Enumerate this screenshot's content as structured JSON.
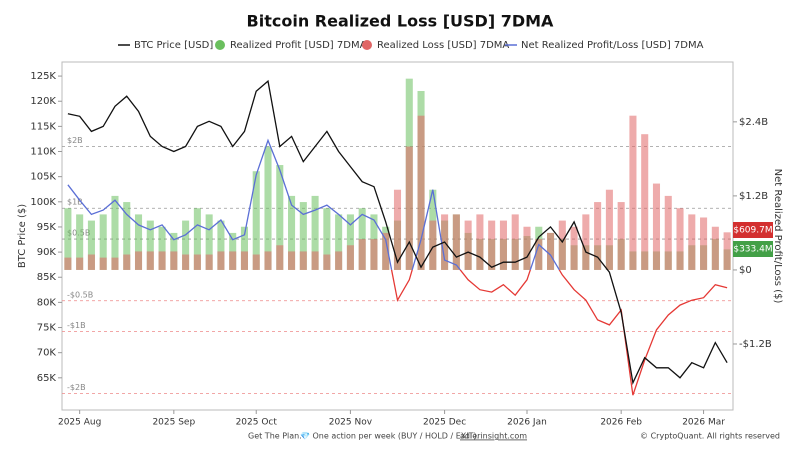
{
  "chart_data": {
    "type": "combo",
    "title": "Bitcoin Realized Loss [USD] 7DMA",
    "ylabel": "BTC Price ($)",
    "y2label": "Net Realized Profit/Loss ($)",
    "categories": [
      null,
      "2025 Aug",
      null,
      null,
      null,
      null,
      null,
      null,
      null,
      "2025 Sep",
      null,
      null,
      null,
      null,
      null,
      null,
      "2025 Oct",
      null,
      null,
      null,
      null,
      null,
      null,
      null,
      "2025 Nov",
      null,
      null,
      null,
      null,
      null,
      null,
      null,
      "2025 Dec",
      null,
      null,
      null,
      null,
      null,
      null,
      "2026 Jan",
      null,
      null,
      null,
      null,
      null,
      null,
      null,
      "2026 Feb",
      null,
      null,
      null,
      null,
      null,
      null,
      "2026 Mar",
      null,
      null
    ],
    "ylim": [
      58.6,
      127.8
    ],
    "yticks": [
      {
        "value": 65,
        "label": "65K"
      },
      {
        "value": 70,
        "label": "70K"
      },
      {
        "value": 75,
        "label": "75K"
      },
      {
        "value": 80,
        "label": "80K"
      },
      {
        "value": 85,
        "label": "85K"
      },
      {
        "value": 90,
        "label": "90K"
      },
      {
        "value": 95,
        "label": "95K"
      },
      {
        "value": 100,
        "label": "100K"
      },
      {
        "value": 105,
        "label": "105K"
      },
      {
        "value": 110,
        "label": "110K"
      },
      {
        "value": 115,
        "label": "115K"
      },
      {
        "value": 120,
        "label": "120K"
      },
      {
        "value": 125,
        "label": "125K"
      }
    ],
    "y2lim": [
      -2.27,
      3.37
    ],
    "y2ticks": [
      {
        "value": -1.2,
        "label": "-$1.2B"
      },
      {
        "value": 0,
        "label": "$0"
      },
      {
        "value": 1.2,
        "label": "$1.2B"
      },
      {
        "value": 2.4,
        "label": "$2.4B"
      }
    ],
    "reference_lines": [
      {
        "value": 2,
        "label": "$2B"
      },
      {
        "value": 1,
        "label": "$1B"
      },
      {
        "value": 0.5,
        "label": "$0.5B"
      },
      {
        "value": -0.5,
        "label": "-$0.5B"
      },
      {
        "value": -1,
        "label": "-$1B"
      },
      {
        "value": -2,
        "label": "-$2B"
      }
    ],
    "series": [
      {
        "name": "BTC Price [USD]",
        "type": "line",
        "color": "#111111",
        "values": [
          117.5,
          117,
          114,
          115,
          119,
          121,
          118,
          113,
          111,
          110,
          111,
          115,
          116,
          115,
          111,
          114,
          122,
          124,
          111,
          113,
          108,
          111,
          114,
          110,
          107,
          104,
          103,
          96,
          88,
          92,
          87,
          91,
          92,
          89,
          90,
          89,
          87,
          88,
          88,
          89,
          93,
          95,
          92,
          96,
          90,
          89,
          86,
          78,
          64,
          69,
          67,
          67,
          65,
          68,
          67,
          72,
          68
        ]
      },
      {
        "name": "Realized Profit [USD] 7DMA",
        "type": "bar",
        "axis": "y2",
        "color": "#6abf5e",
        "values": [
          1.0,
          0.9,
          0.8,
          0.9,
          1.2,
          1.1,
          0.9,
          0.8,
          0.7,
          0.6,
          0.8,
          1.0,
          0.9,
          0.8,
          0.6,
          0.7,
          1.6,
          2.0,
          1.7,
          1.2,
          1.1,
          1.2,
          1.0,
          0.9,
          0.9,
          1.0,
          0.9,
          0.7,
          0.8,
          3.1,
          2.9,
          1.3,
          0.8,
          0.9,
          0.6,
          0.5,
          0.5,
          0.5,
          0.5,
          0.55,
          0.7,
          0.6,
          0.5,
          0.4,
          0.4,
          0.4,
          0.4,
          0.5,
          0.3,
          0.3,
          0.3,
          0.3,
          0.3,
          0.4,
          0.4,
          0.5,
          0.3334
        ],
        "value_labels": [
          null,
          null,
          null,
          null,
          null,
          null,
          null,
          null,
          null,
          null,
          null,
          null,
          null,
          null,
          null,
          null,
          null,
          null,
          null,
          null,
          null,
          null,
          null,
          null,
          null,
          null,
          null,
          null,
          null,
          null,
          null,
          null,
          null,
          null,
          null,
          null,
          null,
          null,
          null,
          null,
          null,
          null,
          null,
          null,
          null,
          null,
          null,
          null,
          null,
          null,
          null,
          null,
          null,
          null,
          null,
          null,
          "$333.4M"
        ]
      },
      {
        "name": "Realized Loss [USD] 7DMA",
        "type": "bar",
        "axis": "y2",
        "color": "#e06666",
        "values": [
          0.2,
          0.2,
          0.25,
          0.2,
          0.2,
          0.25,
          0.3,
          0.3,
          0.3,
          0.3,
          0.25,
          0.25,
          0.25,
          0.3,
          0.3,
          0.3,
          0.25,
          0.3,
          0.4,
          0.3,
          0.3,
          0.3,
          0.25,
          0.3,
          0.4,
          0.5,
          0.5,
          0.6,
          1.3,
          2.0,
          2.5,
          0.8,
          0.9,
          0.9,
          0.8,
          0.9,
          0.8,
          0.8,
          0.9,
          0.7,
          0.5,
          0.6,
          0.8,
          0.7,
          0.9,
          1.1,
          1.3,
          1.1,
          2.5,
          2.2,
          1.4,
          1.2,
          1.0,
          0.9,
          0.85,
          0.7,
          0.6097
        ],
        "value_labels": [
          null,
          null,
          null,
          null,
          null,
          null,
          null,
          null,
          null,
          null,
          null,
          null,
          null,
          null,
          null,
          null,
          null,
          null,
          null,
          null,
          null,
          null,
          null,
          null,
          null,
          null,
          null,
          null,
          null,
          null,
          null,
          null,
          null,
          null,
          null,
          null,
          null,
          null,
          null,
          null,
          null,
          null,
          null,
          null,
          null,
          null,
          null,
          null,
          null,
          null,
          null,
          null,
          null,
          null,
          null,
          null,
          "$609.7M"
        ]
      },
      {
        "name": "Net Realized Profit/Loss [USD] 7DMA",
        "type": "line",
        "axis": "y2",
        "color": "#5b6fd6",
        "negative_color": "#e53935",
        "values": [
          1.38,
          1.13,
          0.9,
          0.97,
          1.13,
          0.9,
          0.73,
          0.65,
          0.73,
          0.49,
          0.57,
          0.73,
          0.65,
          0.81,
          0.49,
          0.57,
          1.54,
          2.1,
          1.62,
          1.05,
          0.9,
          0.97,
          1.05,
          0.9,
          0.73,
          0.9,
          0.81,
          0.49,
          -0.49,
          -0.16,
          0.49,
          1.3,
          0.16,
          0.08,
          -0.16,
          -0.32,
          -0.36,
          -0.24,
          -0.41,
          -0.16,
          0.41,
          0.24,
          -0.08,
          -0.32,
          -0.49,
          -0.81,
          -0.89,
          -0.65,
          -2.03,
          -1.46,
          -0.97,
          -0.73,
          -0.57,
          -0.49,
          -0.45,
          -0.24,
          -0.29
        ]
      }
    ],
    "footer": {
      "text": "Get The Plan.",
      "tagline": "💎 One action per week (BUY / HOLD / EXIT).",
      "link": "adlerinsight.com",
      "copyright": "© CryptoQuant. All rights reserved"
    }
  }
}
